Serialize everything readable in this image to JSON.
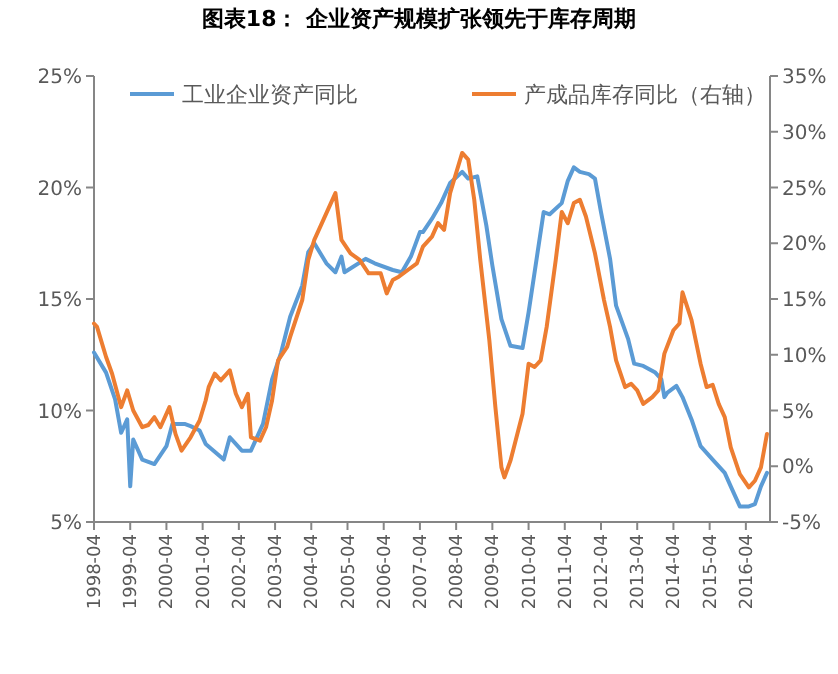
{
  "chart_data": {
    "type": "line",
    "title": "图表18：  企业资产规模扩张领先于库存周期",
    "legend": "top",
    "grid": false,
    "marker": "none",
    "line_style": "solid",
    "xlim": [
      "1998-04",
      "2016-12"
    ],
    "xticks": [
      "1998-04",
      "1999-04",
      "2000-04",
      "2001-04",
      "2002-04",
      "2003-04",
      "2004-04",
      "2005-04",
      "2006-04",
      "2007-04",
      "2008-04",
      "2009-04",
      "2010-04",
      "2011-04",
      "2012-04",
      "2013-04",
      "2014-04",
      "2015-04",
      "2016-04"
    ],
    "ylim": [
      5,
      25
    ],
    "yticks": [
      {
        "value": 5,
        "label": "5%"
      },
      {
        "value": 10,
        "label": "10%"
      },
      {
        "value": 15,
        "label": "15%"
      },
      {
        "value": 20,
        "label": "20%"
      },
      {
        "value": 25,
        "label": "25%"
      }
    ],
    "y2lim": [
      -5,
      35
    ],
    "y2ticks": [
      {
        "value": -5,
        "label": "-5%"
      },
      {
        "value": 0,
        "label": "0%"
      },
      {
        "value": 5,
        "label": "5%"
      },
      {
        "value": 10,
        "label": "10%"
      },
      {
        "value": 15,
        "label": "15%"
      },
      {
        "value": 20,
        "label": "20%"
      },
      {
        "value": 25,
        "label": "25%"
      },
      {
        "value": 30,
        "label": "30%"
      },
      {
        "value": 35,
        "label": "35%"
      }
    ],
    "series": [
      {
        "name": "工业企业资产同比",
        "color": "#5b9bd5",
        "x": [
          "1998-04",
          "1998-08",
          "1998-11",
          "1999-01",
          "1999-03",
          "1999-04",
          "1999-05",
          "1999-08",
          "1999-12",
          "2000-04",
          "2000-06",
          "2000-10",
          "2000-12",
          "2001-03",
          "2001-05",
          "2001-11",
          "2002-01",
          "2002-05",
          "2002-08",
          "2002-12",
          "2003-03",
          "2003-06",
          "2003-09",
          "2004-01",
          "2004-03",
          "2004-05",
          "2004-09",
          "2004-12",
          "2005-02",
          "2005-03",
          "2005-10",
          "2006-01",
          "2006-07",
          "2006-10",
          "2007-01",
          "2007-04",
          "2007-05",
          "2007-08",
          "2007-11",
          "2008-02",
          "2008-06",
          "2008-08",
          "2008-11",
          "2009-02",
          "2009-04",
          "2009-07",
          "2009-10",
          "2010-02",
          "2010-04",
          "2010-07",
          "2010-09",
          "2010-11",
          "2011-03",
          "2011-05",
          "2011-07",
          "2011-09",
          "2011-12",
          "2012-02",
          "2012-04",
          "2012-07",
          "2012-09",
          "2013-01",
          "2013-03",
          "2013-06",
          "2013-10",
          "2013-12",
          "2014-01",
          "2014-02",
          "2014-05",
          "2014-07",
          "2014-10",
          "2015-01",
          "2015-05",
          "2015-09",
          "2015-11",
          "2016-02",
          "2016-05",
          "2016-07",
          "2016-09",
          "2016-11"
        ],
        "values": [
          12.6,
          11.7,
          10.5,
          9.0,
          9.6,
          6.6,
          8.7,
          7.8,
          7.6,
          8.4,
          9.4,
          9.4,
          9.3,
          9.1,
          8.5,
          7.8,
          8.8,
          8.2,
          8.2,
          9.4,
          11.4,
          12.6,
          14.2,
          15.6,
          17.1,
          17.5,
          16.6,
          16.2,
          16.9,
          16.2,
          16.8,
          16.6,
          16.3,
          16.2,
          16.9,
          18.0,
          18.0,
          18.6,
          19.3,
          20.2,
          20.7,
          20.4,
          20.5,
          18.3,
          16.5,
          14.1,
          12.9,
          12.8,
          14.4,
          17.1,
          18.9,
          18.8,
          19.3,
          20.3,
          20.9,
          20.7,
          20.6,
          20.4,
          18.9,
          16.8,
          14.7,
          13.2,
          12.1,
          12.0,
          11.7,
          11.4,
          10.6,
          10.8,
          11.1,
          10.6,
          9.6,
          8.4,
          7.8,
          7.2,
          6.6,
          5.7,
          5.7,
          5.8,
          6.6,
          7.2
        ]
      },
      {
        "name": "产成品库存同比（右轴）",
        "color": "#ed7d31",
        "axis": "y2",
        "x": [
          "1998-04",
          "1998-05",
          "1998-08",
          "1998-10",
          "1999-01",
          "1999-03",
          "1999-05",
          "1999-08",
          "1999-10",
          "1999-12",
          "2000-02",
          "2000-05",
          "2000-07",
          "2000-09",
          "2000-12",
          "2001-03",
          "2001-05",
          "2001-06",
          "2001-08",
          "2001-10",
          "2002-01",
          "2002-03",
          "2002-05",
          "2002-07",
          "2002-08",
          "2002-11",
          "2003-01",
          "2003-03",
          "2003-05",
          "2003-08",
          "2003-09",
          "2004-01",
          "2004-03",
          "2004-05",
          "2004-08",
          "2004-12",
          "2005-02",
          "2005-05",
          "2005-08",
          "2005-11",
          "2006-03",
          "2006-05",
          "2006-07",
          "2006-09",
          "2006-12",
          "2007-03",
          "2007-05",
          "2007-08",
          "2007-10",
          "2007-12",
          "2008-02",
          "2008-06",
          "2008-08",
          "2008-10",
          "2008-12",
          "2009-03",
          "2009-05",
          "2009-07",
          "2009-08",
          "2009-10",
          "2010-02",
          "2010-04",
          "2010-06",
          "2010-08",
          "2010-10",
          "2011-01",
          "2011-03",
          "2011-05",
          "2011-07",
          "2011-09",
          "2011-11",
          "2012-02",
          "2012-05",
          "2012-07",
          "2012-09",
          "2012-12",
          "2013-02",
          "2013-04",
          "2013-06",
          "2013-09",
          "2013-11",
          "2014-01",
          "2014-04",
          "2014-06",
          "2014-07",
          "2014-10",
          "2015-01",
          "2015-03",
          "2015-05",
          "2015-07",
          "2015-09",
          "2015-11",
          "2016-02",
          "2016-05",
          "2016-07",
          "2016-09",
          "2016-11"
        ],
        "values": [
          12.8,
          12.5,
          9.8,
          8.3,
          5.3,
          6.8,
          5.0,
          3.5,
          3.7,
          4.4,
          3.5,
          5.3,
          2.9,
          1.4,
          2.6,
          4.1,
          5.9,
          7.1,
          8.3,
          7.7,
          8.6,
          6.5,
          5.3,
          6.5,
          2.6,
          2.3,
          3.5,
          5.9,
          9.5,
          10.7,
          11.6,
          14.9,
          18.5,
          20.3,
          22.1,
          24.5,
          20.3,
          19.1,
          18.5,
          17.3,
          17.3,
          15.5,
          16.7,
          17.0,
          17.6,
          18.2,
          19.7,
          20.6,
          21.8,
          21.2,
          24.5,
          28.1,
          27.5,
          23.9,
          18.5,
          11.3,
          5.3,
          -0.1,
          -1.0,
          0.5,
          4.7,
          9.2,
          8.9,
          9.5,
          12.5,
          18.5,
          22.8,
          21.8,
          23.6,
          23.9,
          22.4,
          19.1,
          14.9,
          12.5,
          9.5,
          7.1,
          7.4,
          6.8,
          5.6,
          6.2,
          6.8,
          10.1,
          12.2,
          12.8,
          15.6,
          13.1,
          9.2,
          7.1,
          7.3,
          5.6,
          4.4,
          1.7,
          -0.7,
          -1.9,
          -1.3,
          -0.1,
          2.9
        ]
      }
    ]
  }
}
